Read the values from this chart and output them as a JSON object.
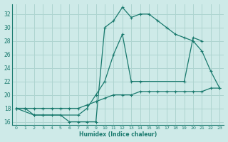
{
  "xlabel": "Humidex (Indice chaleur)",
  "bg_color": "#ceeae8",
  "grid_color": "#aed4d0",
  "line_color": "#1a7a6e",
  "xlim": [
    -0.5,
    23.5
  ],
  "ylim": [
    15.5,
    33.5
  ],
  "xticks": [
    0,
    1,
    2,
    3,
    4,
    5,
    6,
    7,
    8,
    9,
    10,
    11,
    12,
    13,
    14,
    15,
    16,
    17,
    18,
    19,
    20,
    21,
    22,
    23
  ],
  "yticks": [
    16,
    18,
    20,
    22,
    24,
    26,
    28,
    30,
    32
  ],
  "curve1_x": [
    0,
    1,
    2,
    3,
    4,
    5,
    6,
    7,
    8,
    9,
    10,
    11,
    12,
    13,
    14,
    15,
    16,
    17,
    18,
    19,
    20,
    21,
    22,
    23
  ],
  "curve1_y": [
    18,
    18,
    17,
    17,
    17,
    17,
    16,
    16,
    16,
    16,
    30,
    31,
    33,
    31.5,
    32,
    32,
    31,
    30,
    29,
    28.5,
    28,
    26.5,
    23.5,
    21
  ],
  "curve2_x": [
    0,
    2,
    3,
    7,
    8,
    9,
    10,
    11,
    12,
    13,
    14,
    19,
    20,
    21
  ],
  "curve2_y": [
    18,
    17,
    17,
    17,
    18,
    20,
    22,
    26,
    29,
    22,
    22,
    22,
    28.5,
    28
  ],
  "curve3_x": [
    0,
    1,
    2,
    3,
    4,
    5,
    6,
    7,
    8,
    9,
    10,
    11,
    12,
    13,
    14,
    15,
    16,
    17,
    18,
    19,
    20,
    21,
    22,
    23
  ],
  "curve3_y": [
    18,
    18,
    18,
    18,
    18,
    18,
    18,
    18,
    18.5,
    19,
    19.5,
    20,
    20,
    20,
    20.5,
    20.5,
    20.5,
    20.5,
    20.5,
    20.5,
    20.5,
    20.5,
    21,
    21
  ]
}
